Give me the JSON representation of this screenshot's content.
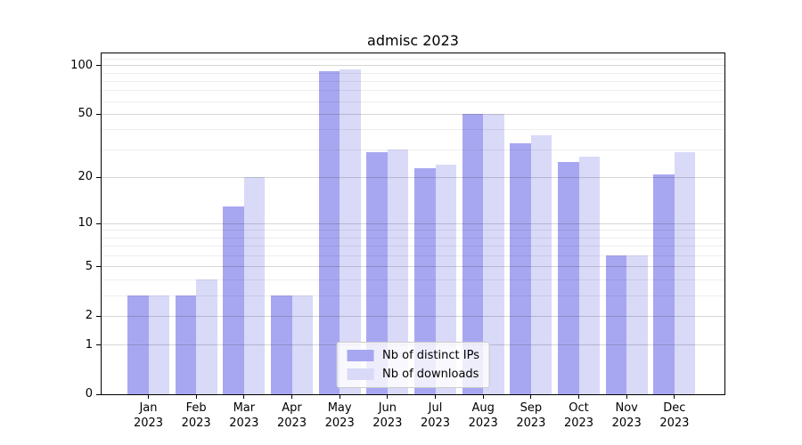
{
  "chart_data": {
    "type": "bar",
    "title": "admisc 2023",
    "categories": [
      "Jan 2023",
      "Feb 2023",
      "Mar 2023",
      "Apr 2023",
      "May 2023",
      "Jun 2023",
      "Jul 2023",
      "Aug 2023",
      "Sep 2023",
      "Oct 2023",
      "Nov 2023",
      "Dec 2023"
    ],
    "months": [
      "Jan",
      "Feb",
      "Mar",
      "Apr",
      "May",
      "Jun",
      "Jul",
      "Aug",
      "Sep",
      "Oct",
      "Nov",
      "Dec"
    ],
    "year": "2023",
    "series": [
      {
        "name": "Nb of distinct IPs",
        "color": "#a7a7f1",
        "values": [
          3,
          3,
          13,
          3,
          93,
          29,
          23,
          50,
          33,
          25,
          6,
          21
        ]
      },
      {
        "name": "Nb of downloads",
        "color": "#d9d9f8",
        "values": [
          3,
          4,
          20,
          3,
          95,
          30,
          24,
          50,
          37,
          27,
          6,
          29
        ]
      }
    ],
    "yscale": "log1p",
    "ymin": 0,
    "ymax": 119,
    "yticks": [
      0,
      1,
      2,
      5,
      10,
      20,
      50,
      100
    ],
    "yminorticks": [
      3,
      4,
      6,
      7,
      8,
      9,
      30,
      40,
      60,
      70,
      80,
      90,
      110
    ],
    "grid": "on",
    "legend_position": "lower center",
    "colors": {
      "major_grid": "rgba(0,0,0,0.16)",
      "minor_grid": "rgba(0,0,0,0.065)",
      "axis": "#000000",
      "background": "#ffffff"
    }
  }
}
